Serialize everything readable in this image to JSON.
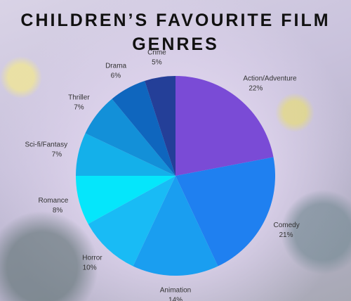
{
  "chart_data": {
    "type": "pie",
    "title": "CHILDREN’S FAVOURITE FILM GENRES",
    "categories": [
      "Action/Adventure",
      "Comedy",
      "Animation",
      "Horror",
      "Romance",
      "Sci-fi/Fantasy",
      "Thriller",
      "Drama",
      "Crime"
    ],
    "values": [
      22,
      21,
      14,
      10,
      8,
      7,
      7,
      6,
      5
    ],
    "value_labels": [
      "22%",
      "21%",
      "14%",
      "10%",
      "8%",
      "7%",
      "7%",
      "6%",
      "5%"
    ],
    "colors": [
      "#7a4bd6",
      "#1f80f0",
      "#1a9ef0",
      "#19bbf5",
      "#05e6fb",
      "#14b0ea",
      "#1390d8",
      "#0f66be",
      "#243f98"
    ]
  }
}
